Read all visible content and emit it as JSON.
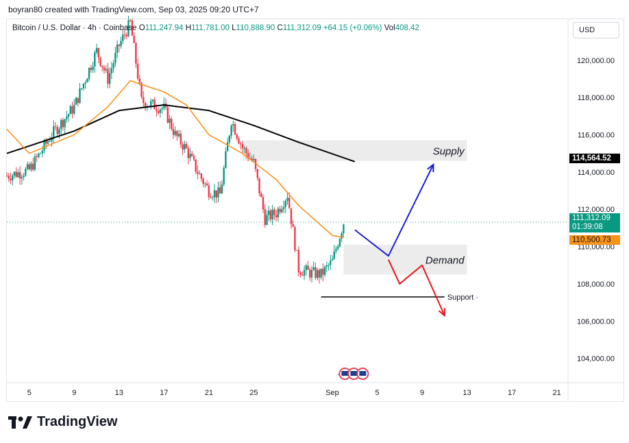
{
  "header": {
    "attribution": "boyran80 created with TradingView.com, Sep 03, 2025 09:20 UTC+7"
  },
  "legend": {
    "symbol": "Bitcoin / U.S. Dollar · 4h · Coinbase",
    "open_label": "O",
    "open": "111,247.94",
    "high_label": "H",
    "high": "111,781.00",
    "low_label": "L",
    "low": "110,888.90",
    "close_label": "C",
    "close": "111,312.09",
    "change": "+64.15 (+0.06%)",
    "vol_label": "Vol",
    "vol": "408.42"
  },
  "price_axis": {
    "currency_button": "USD"
  },
  "tags": {
    "supply_level": "114,564.52",
    "last_price": "111,312.09",
    "countdown": "01:39:08",
    "ema_value": "110,500.73"
  },
  "footer": {
    "brand": "TradingView"
  },
  "colors": {
    "up": "#089981",
    "down": "#f23645",
    "ema_fast": "#f7931a",
    "ema_slow": "#000000",
    "projection_up": "#1c1cd6",
    "projection_down": "#e8141c",
    "zone": "#ececec"
  },
  "chart_data": {
    "type": "candlestick",
    "title": "Bitcoin / U.S. Dollar · 4h · Coinbase",
    "xlabel": "",
    "ylabel": "",
    "x_ticks": [
      "5",
      "9",
      "13",
      "17",
      "21",
      "25",
      "Sep",
      "5",
      "9",
      "13",
      "17",
      "21"
    ],
    "y_ticks": [
      "104,000.00",
      "106,000.00",
      "108,000.00",
      "110,000.00",
      "112,000.00",
      "114,000.00",
      "116,000.00",
      "118,000.00",
      "120,000.00"
    ],
    "ylim": [
      102700,
      122200
    ],
    "x_domain": [
      "Aug 3",
      "Sep 22"
    ],
    "anchors": [
      {
        "date": "Aug 3",
        "close": 113800
      },
      {
        "date": "Aug 5",
        "close": 114100
      },
      {
        "date": "Aug 7",
        "close": 116000
      },
      {
        "date": "Aug 9",
        "close": 117500
      },
      {
        "date": "Aug 11",
        "close": 120500
      },
      {
        "date": "Aug 12",
        "close": 119000
      },
      {
        "date": "Aug 13",
        "close": 120800
      },
      {
        "date": "Aug 14",
        "close": 122000
      },
      {
        "date": "Aug 15",
        "close": 117800
      },
      {
        "date": "Aug 17",
        "close": 117400
      },
      {
        "date": "Aug 18",
        "close": 116000
      },
      {
        "date": "Aug 19",
        "close": 115200
      },
      {
        "date": "Aug 20",
        "close": 114000
      },
      {
        "date": "Aug 21",
        "close": 113000
      },
      {
        "date": "Aug 22",
        "close": 112800
      },
      {
        "date": "Aug 23",
        "close": 116800
      },
      {
        "date": "Aug 24",
        "close": 115300
      },
      {
        "date": "Aug 25",
        "close": 114500
      },
      {
        "date": "Aug 26",
        "close": 111500
      },
      {
        "date": "Aug 27",
        "close": 111800
      },
      {
        "date": "Aug 28",
        "close": 112800
      },
      {
        "date": "Aug 29",
        "close": 108800
      },
      {
        "date": "Aug 30",
        "close": 108600
      },
      {
        "date": "Aug 31",
        "close": 108500
      },
      {
        "date": "Sep 1",
        "close": 109200
      },
      {
        "date": "Sep 2",
        "close": 111300
      }
    ],
    "series": [
      {
        "name": "",
        "kind": "ema_slow",
        "points": [
          [
            "Aug 3",
            115000
          ],
          [
            "Aug 9",
            116200
          ],
          [
            "Aug 13",
            117300
          ],
          [
            "Aug 17",
            117600
          ],
          [
            "Aug 21",
            117300
          ],
          [
            "Aug 25",
            116500
          ],
          [
            "Aug 29",
            115600
          ],
          [
            "Sep 3",
            114560
          ]
        ]
      },
      {
        "name": "",
        "kind": "ema_fast",
        "points": [
          [
            "Aug 3",
            116300
          ],
          [
            "Aug 5",
            115000
          ],
          [
            "Aug 9",
            116000
          ],
          [
            "Aug 12",
            117500
          ],
          [
            "Aug 14",
            118900
          ],
          [
            "Aug 17",
            118300
          ],
          [
            "Aug 19",
            117600
          ],
          [
            "Aug 21",
            116000
          ],
          [
            "Aug 24",
            115000
          ],
          [
            "Aug 27",
            113600
          ],
          [
            "Aug 29",
            112200
          ],
          [
            "Sep 1",
            110600
          ],
          [
            "Sep 2",
            110500
          ]
        ]
      }
    ],
    "zones": [
      {
        "label": "Supply",
        "from": "Aug 24",
        "to": "Sep 13",
        "low": 114600,
        "high": 115700
      },
      {
        "label": "Demand",
        "from": "Sep 2",
        "to": "Sep 13",
        "low": 108500,
        "high": 110100
      }
    ],
    "support": {
      "label": "Support",
      "price": 107300,
      "from": "Aug 31",
      "to": "Sep 11"
    },
    "projections": [
      {
        "name": "",
        "kind": "up",
        "points": [
          [
            "Sep 3",
            110900
          ],
          [
            "Sep 6",
            109500
          ],
          [
            "Sep 10",
            114400
          ]
        ]
      },
      {
        "name": "",
        "kind": "down",
        "points": [
          [
            "Sep 6",
            109300
          ],
          [
            "Sep 7",
            108000
          ],
          [
            "Sep 9",
            109000
          ],
          [
            "Sep 11",
            106300
          ]
        ]
      }
    ],
    "last_price": 111312.09,
    "supply_level": 114564.52
  }
}
